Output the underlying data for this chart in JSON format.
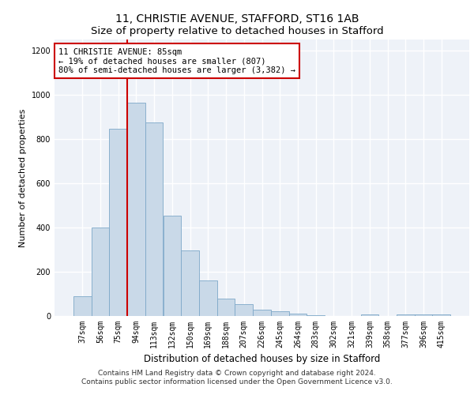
{
  "title": "11, CHRISTIE AVENUE, STAFFORD, ST16 1AB",
  "subtitle": "Size of property relative to detached houses in Stafford",
  "xlabel": "Distribution of detached houses by size in Stafford",
  "ylabel": "Number of detached properties",
  "categories": [
    "37sqm",
    "56sqm",
    "75sqm",
    "94sqm",
    "113sqm",
    "132sqm",
    "150sqm",
    "169sqm",
    "188sqm",
    "207sqm",
    "226sqm",
    "245sqm",
    "264sqm",
    "283sqm",
    "302sqm",
    "321sqm",
    "339sqm",
    "358sqm",
    "377sqm",
    "396sqm",
    "415sqm"
  ],
  "values": [
    90,
    400,
    845,
    965,
    875,
    455,
    295,
    160,
    80,
    52,
    30,
    20,
    12,
    5,
    0,
    0,
    8,
    0,
    8,
    8,
    8
  ],
  "bar_color": "#c9d9e8",
  "bar_edge_color": "#7da8c8",
  "vline_x_index": 3,
  "vline_color": "#cc0000",
  "annotation_text": "11 CHRISTIE AVENUE: 85sqm\n← 19% of detached houses are smaller (807)\n80% of semi-detached houses are larger (3,382) →",
  "annotation_box_color": "#ffffff",
  "annotation_box_edge_color": "#cc0000",
  "ylim": [
    0,
    1250
  ],
  "yticks": [
    0,
    200,
    400,
    600,
    800,
    1000,
    1200
  ],
  "footer_line1": "Contains HM Land Registry data © Crown copyright and database right 2024.",
  "footer_line2": "Contains public sector information licensed under the Open Government Licence v3.0.",
  "background_color": "#eef2f8",
  "grid_color": "#ffffff",
  "title_fontsize": 10,
  "subtitle_fontsize": 9.5,
  "xlabel_fontsize": 8.5,
  "ylabel_fontsize": 8,
  "tick_fontsize": 7,
  "annotation_fontsize": 7.5,
  "footer_fontsize": 6.5
}
